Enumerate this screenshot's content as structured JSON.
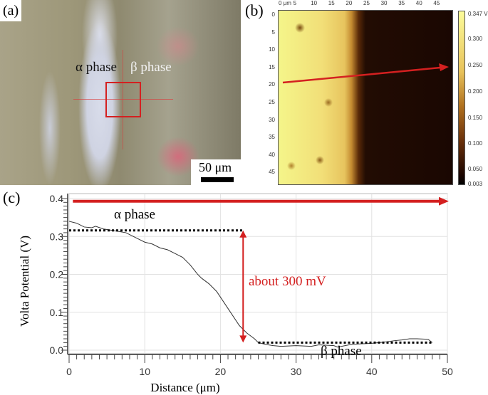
{
  "panel_a": {
    "label": "(a)",
    "alpha_label": "α phase",
    "beta_label": "β phase",
    "scale_bar": "50 μm"
  },
  "panel_b": {
    "label": "(b)",
    "x_ticks": [
      "0 μm",
      "5",
      "10",
      "15",
      "20",
      "25",
      "30",
      "35",
      "40",
      "45"
    ],
    "y_ticks": [
      "0",
      "5",
      "10",
      "15",
      "20",
      "25",
      "30",
      "35",
      "40",
      "45"
    ],
    "colorbar_ticks": [
      "0.347 V",
      "0.300",
      "0.250",
      "0.200",
      "0.150",
      "0.100",
      "0.050",
      "0.003"
    ],
    "colormap": [
      "#000000",
      "#6a300a",
      "#b0701e",
      "#e8c25a",
      "#fcfc9a"
    ],
    "arrow_color": "#d42020"
  },
  "chart_data": {
    "label": "(c)",
    "type": "line",
    "xlabel": "Distance (μm)",
    "ylabel": "Volta Potential (V)",
    "xlim": [
      0,
      50
    ],
    "ylim": [
      0,
      0.4
    ],
    "x_ticks": [
      "0",
      "10",
      "20",
      "30",
      "40",
      "50"
    ],
    "y_ticks": [
      "0.0",
      "0.1",
      "0.2",
      "0.3",
      "0.4"
    ],
    "grid": true,
    "line_color": "#333333",
    "annotation_color": "#d42020",
    "x": [
      0,
      1,
      2,
      3,
      3.5,
      4.5,
      6,
      7.5,
      9,
      10,
      11,
      12,
      13,
      14,
      15,
      16,
      17,
      17.5,
      18.5,
      19.5,
      20.5,
      21.5,
      22.5,
      23.5,
      24.5,
      25,
      26,
      27,
      28,
      30,
      32,
      33,
      35,
      35.5,
      37,
      38,
      40,
      41,
      42,
      43,
      44,
      45,
      46,
      47,
      47.5,
      48
    ],
    "y": [
      0.34,
      0.335,
      0.325,
      0.323,
      0.327,
      0.32,
      0.315,
      0.31,
      0.295,
      0.285,
      0.28,
      0.27,
      0.265,
      0.255,
      0.245,
      0.225,
      0.2,
      0.19,
      0.175,
      0.155,
      0.125,
      0.095,
      0.065,
      0.045,
      0.03,
      0.02,
      0.015,
      0.012,
      0.01,
      0.012,
      0.01,
      0.014,
      0.012,
      0.008,
      0.014,
      0.016,
      0.018,
      0.02,
      0.022,
      0.025,
      0.027,
      0.03,
      0.03,
      0.029,
      0.028,
      0.02
    ],
    "annotations": {
      "alpha_label": "α phase",
      "beta_label": "β phase",
      "difference_label": "about 300 mV",
      "alpha_level": 0.316,
      "beta_level": 0.02,
      "alpha_range": [
        0,
        23
      ],
      "beta_range": [
        25,
        48
      ],
      "arrow_x": 23,
      "scan_arrow_y": 0.393
    }
  }
}
